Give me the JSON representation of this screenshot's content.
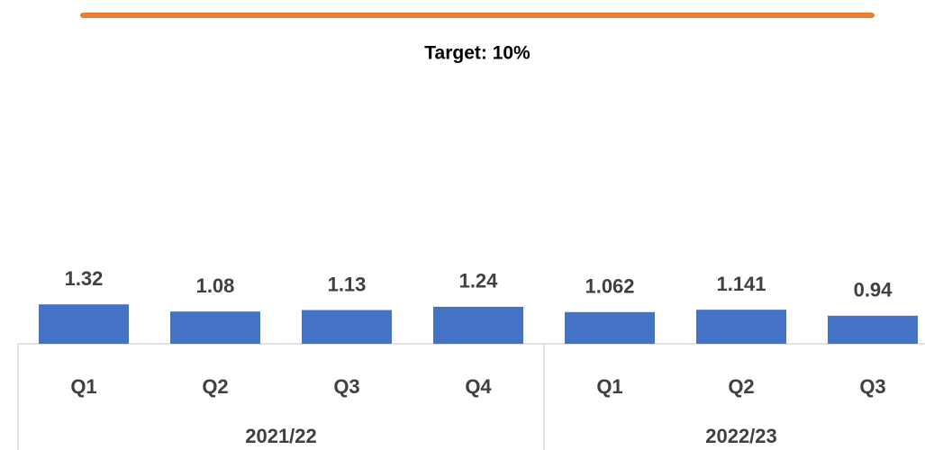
{
  "chart_data": {
    "type": "bar",
    "annotation": "Target: 10%",
    "groups": [
      {
        "name": "2021/22",
        "categories": [
          "Q1",
          "Q2",
          "Q3",
          "Q4"
        ]
      },
      {
        "name": "2022/23",
        "categories": [
          "Q1",
          "Q2",
          "Q3"
        ]
      }
    ],
    "values": [
      1.32,
      1.08,
      1.13,
      1.24,
      1.062,
      1.141,
      0.94
    ],
    "color": "#4472c4",
    "target_color": "#ed7d31",
    "ylim": [
      0,
      11
    ]
  }
}
